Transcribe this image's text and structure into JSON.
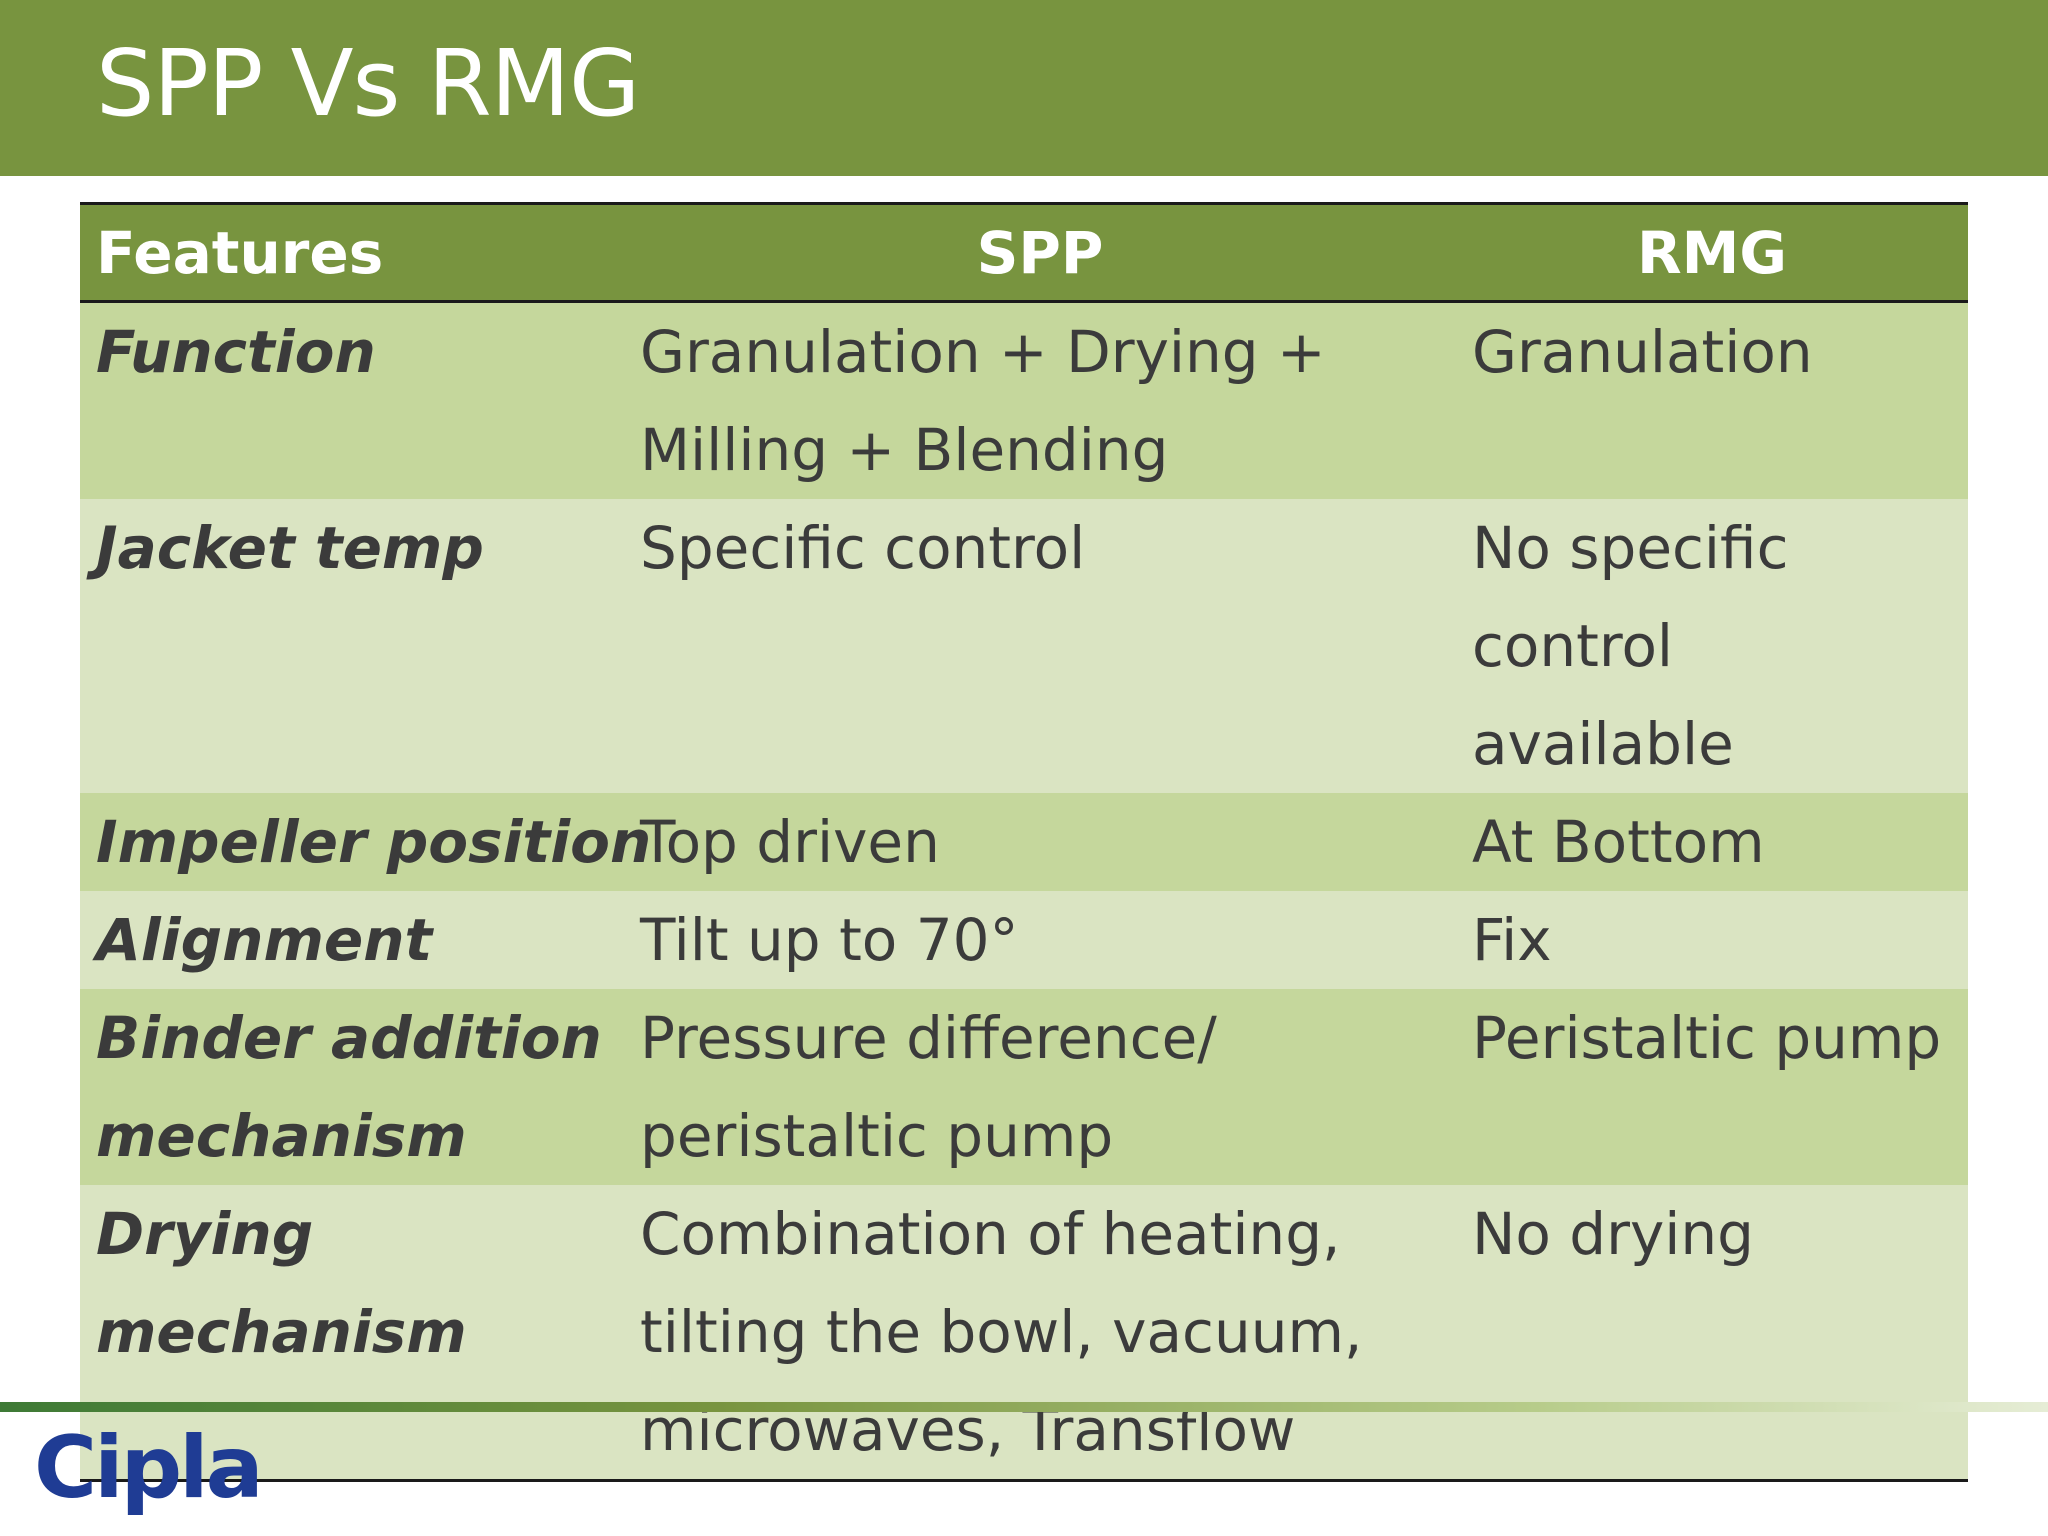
{
  "slide": {
    "title": "SPP Vs RMG",
    "logo_text": "Cipla",
    "colors": {
      "header": "#78943f",
      "row_dark": "#c5d79c",
      "row_light": "#dae4c2",
      "logo": "#1f3c94"
    }
  },
  "table": {
    "headers": [
      "Features",
      "SPP",
      "RMG"
    ],
    "rows": [
      {
        "feature": "Function",
        "spp": "Granulation + Drying +\nMilling + Blending",
        "rmg": "Granulation"
      },
      {
        "feature": "Jacket temp",
        "spp": "Specific control",
        "rmg": "No specific\ncontrol available"
      },
      {
        "feature": "Impeller position",
        "spp": "Top driven",
        "rmg": "At Bottom"
      },
      {
        "feature": "Alignment",
        "spp": "Tilt up to 70°",
        "rmg": "Fix"
      },
      {
        "feature": "Binder addition\nmechanism",
        "spp": "Pressure difference/\nperistaltic pump",
        "rmg": "Peristaltic pump"
      },
      {
        "feature": "Drying\nmechanism",
        "spp": "Combination of heating,\ntilting the bowl, vacuum,\nmicrowaves, Transflow",
        "rmg": "No drying"
      }
    ]
  }
}
